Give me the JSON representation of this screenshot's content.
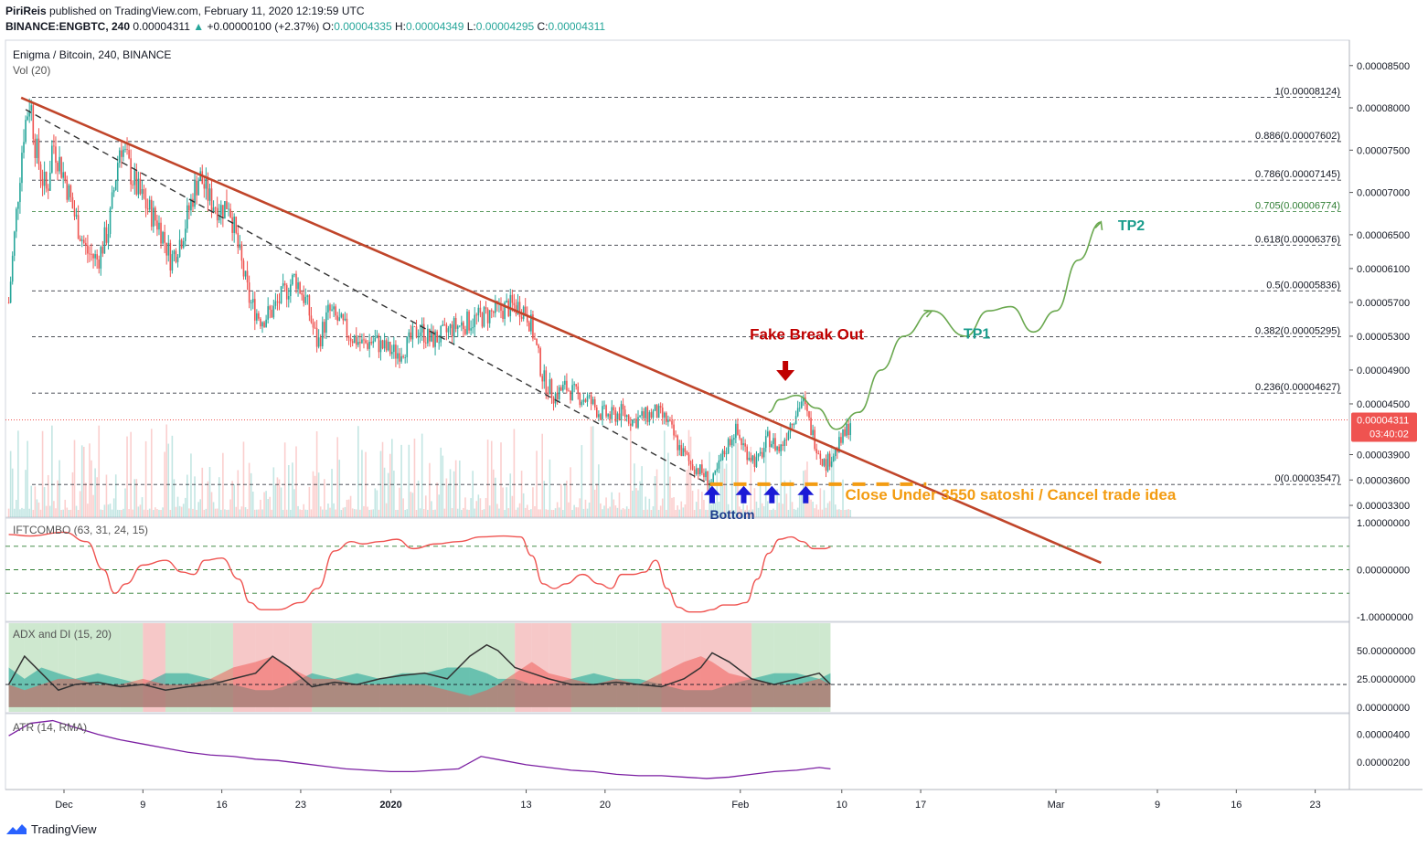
{
  "header": {
    "publisher": "PiriReis",
    "published_line": "published on TradingView.com, February 11, 2020 12:19:59 UTC",
    "symbol_line": "BINANCE:ENGBTC, 240",
    "last": "0.00004311",
    "change": "+0.00000100 (+2.37%)",
    "o_label": "O:",
    "o": "0.00004335",
    "h_label": "H:",
    "h": "0.00004349",
    "l_label": "L:",
    "l": "0.00004295",
    "c_label": "C:",
    "c": "0.00004311"
  },
  "main": {
    "title": "Enigma / Bitcoin, 240, BINANCE",
    "vol_label": "Vol (20)"
  },
  "colors": {
    "bull": "#26a69a",
    "bear": "#ef5350",
    "trendline": "#c0452a",
    "projection": "#6aa84f",
    "cancel_line": "#f39c12",
    "fake_breakout": "#c00000",
    "tp": "#1a9c8c",
    "arrows": "#1a1ad6"
  },
  "annotations": {
    "fake_breakout": "Fake Break Out",
    "tp1": "TP1",
    "tp2": "TP2",
    "cancel": "Close Under 3550 satoshi / Cancel trade idea",
    "bottom": "Bottom"
  },
  "price_labels": {
    "current": "0.00004311",
    "countdown": "03:40:02"
  },
  "indicators": {
    "ift": "IFTCOMBO (63, 31, 24, 15)",
    "adx": "ADX and DI (15, 20)",
    "atr": "ATR (14, RMA)"
  },
  "footer": {
    "brand": "TradingView"
  },
  "chart_data": {
    "type": "line",
    "title": "Enigma / Bitcoin, 240, BINANCE",
    "symbol": "BINANCE:ENGBTC",
    "timeframe": "240",
    "y_ticks": [
      "0.00008500",
      "0.00008000",
      "0.00007500",
      "0.00007000",
      "0.00006500",
      "0.00006100",
      "0.00005700",
      "0.00005300",
      "0.00004900",
      "0.00004500",
      "0.00003900",
      "0.00003600",
      "0.00003300"
    ],
    "x_ticks": [
      "Dec",
      "9",
      "16",
      "23",
      "2020",
      "13",
      "20",
      "Feb",
      "10",
      "17",
      "Mar",
      "9",
      "16",
      "23"
    ],
    "x_tick_positions": [
      0,
      7,
      14,
      21,
      29,
      41,
      48,
      60,
      69,
      76,
      88,
      97,
      104,
      111
    ],
    "ylim": [
      3.16e-05,
      8.8e-05
    ],
    "price_series": {
      "name": "ENGBTC",
      "x_day": [
        -4.9,
        -4.2,
        -3.6,
        -3.0,
        -2.6,
        -2.0,
        -1.5,
        -1.0,
        0.0,
        1.0,
        2.0,
        3.0,
        4.0,
        5.0,
        6.0,
        6.6,
        7.5,
        8.5,
        9.5,
        10.5,
        11.5,
        12.0,
        13.0,
        14.0,
        14.6,
        15.5,
        16.5,
        17.5,
        18.5,
        19.5,
        20.5,
        21.5,
        22.5,
        23.5,
        24.5,
        25.5,
        26.5,
        27.5,
        28.5,
        29.5,
        30.5,
        31.5,
        32.5,
        33.5,
        34.5,
        35.5,
        36.5,
        37.5,
        38.5,
        39.5,
        40.5,
        41.0,
        41.5,
        42.5,
        43.5,
        44.5,
        45.5,
        46.5,
        47.5,
        48.5,
        49.5,
        50.5,
        51.5,
        52.5,
        53.5,
        54.5,
        55.5,
        56.5,
        57.5,
        58.5,
        59.5,
        60.5,
        61.5,
        62.5,
        63.5,
        64.5,
        65.5,
        66.5,
        67.5,
        68.5,
        69.5,
        69.8
      ],
      "close": [
        5.7e-05,
        6.8e-05,
        7.7e-05,
        8.12e-05,
        7.6e-05,
        7.2e-05,
        7e-05,
        7.6e-05,
        7.2e-05,
        6.7e-05,
        6.3e-05,
        6.2e-05,
        6.6e-05,
        7.6e-05,
        7.2e-05,
        7e-05,
        6.8e-05,
        6.6e-05,
        6.2e-05,
        6.5e-05,
        7e-05,
        7.2e-05,
        6.9e-05,
        6.8e-05,
        6.9e-05,
        6.3e-05,
        5.7e-05,
        5.5e-05,
        5.6e-05,
        5.8e-05,
        6e-05,
        5.7e-05,
        5.2e-05,
        5.6e-05,
        5.45e-05,
        5.3e-05,
        5.2e-05,
        5.25e-05,
        5.15e-05,
        5.1e-05,
        5.2e-05,
        5.4e-05,
        5.25e-05,
        5.3e-05,
        5.4e-05,
        5.45e-05,
        5.5e-05,
        5.55e-05,
        5.6e-05,
        5.65e-05,
        5.65e-05,
        5.6e-05,
        5.4e-05,
        4.8e-05,
        4.6e-05,
        4.7e-05,
        4.6e-05,
        4.55e-05,
        4.4e-05,
        4.35e-05,
        4.4e-05,
        4.3e-05,
        4.35e-05,
        4.4e-05,
        4.3e-05,
        4e-05,
        3.8e-05,
        3.7e-05,
        3.55e-05,
        3.9e-05,
        4.2e-05,
        3.95e-05,
        3.8e-05,
        4.1e-05,
        3.95e-05,
        4.3e-05,
        4.55e-05,
        4.1e-05,
        3.78e-05,
        3.95e-05,
        4.2e-05,
        4.31e-05
      ]
    },
    "volume": {
      "name": "Vol (20)"
    },
    "fibonacci": [
      {
        "label": "1(0.00008124)",
        "value": 8.124e-05,
        "color": "#131722"
      },
      {
        "label": "0.886(0.00007602)",
        "value": 7.602e-05,
        "color": "#131722"
      },
      {
        "label": "0.786(0.00007145)",
        "value": 7.145e-05,
        "color": "#131722"
      },
      {
        "label": "0.705(0.00006774)",
        "value": 6.774e-05,
        "color": "#2e7d32"
      },
      {
        "label": "0.618(0.00006376)",
        "value": 6.376e-05,
        "color": "#131722"
      },
      {
        "label": "0.5(0.00005836)",
        "value": 5.836e-05,
        "color": "#131722"
      },
      {
        "label": "0.382(0.00005295)",
        "value": 5.295e-05,
        "color": "#131722"
      },
      {
        "label": "0.236(0.00004627)",
        "value": 4.627e-05,
        "color": "#131722"
      },
      {
        "label": "0(0.00003547)",
        "value": 3.547e-05,
        "color": "#131722"
      }
    ],
    "trendline": {
      "x_day": [
        -3.8,
        92.0
      ],
      "y": [
        8.12e-05,
        2.62e-05
      ]
    },
    "dashed_trendline": {
      "x_day": [
        -3.4,
        57.5
      ],
      "y": [
        7.98e-05,
        3.53e-05
      ]
    },
    "cancel_level": 3.55e-05,
    "projection": {
      "x_day": [
        62.5,
        63.5,
        65.0,
        66.8,
        68.5,
        70.5,
        72.5,
        74.5,
        77.0,
        80.0
      ],
      "y": [
        4.4e-05,
        4.55e-05,
        4.6e-05,
        4.45e-05,
        4.2e-05,
        4.4e-05,
        4.9e-05,
        5.3e-05,
        5.6e-05,
        5.3e-05
      ]
    },
    "projection2": {
      "x_day": [
        80.0,
        82.0,
        84.0,
        86.0,
        88.0,
        90.0,
        92.0
      ],
      "y": [
        5.3e-05,
        5.6e-05,
        5.65e-05,
        5.35e-05,
        5.6e-05,
        6.2e-05,
        6.65e-05
      ]
    },
    "bottom_arrows_x_day": [
      57.5,
      60.3,
      62.8,
      65.8
    ],
    "ift": {
      "name": "IFTCOMBO",
      "ylim": [
        -1.1,
        1.1
      ],
      "y_ticks": [
        "1.00000000",
        "0.00000000",
        "-1.00000000"
      ],
      "levels": [
        0.5,
        0,
        -0.5
      ],
      "x_day": [
        -4.9,
        -3.0,
        0.0,
        2.0,
        3.5,
        4.5,
        5.5,
        7.0,
        9.0,
        10.5,
        11.5,
        12.5,
        14.0,
        15.5,
        16.5,
        17.5,
        19.0,
        21.0,
        22.5,
        24.0,
        25.5,
        26.5,
        28.0,
        29.5,
        31.0,
        33.0,
        35.0,
        37.0,
        39.0,
        40.5,
        41.5,
        42.5,
        43.5,
        44.5,
        46.0,
        47.5,
        48.5,
        49.5,
        50.5,
        51.5,
        52.5,
        53.5,
        54.5,
        55.5,
        56.5,
        57.5,
        58.5,
        59.5,
        60.5,
        61.5,
        62.5,
        63.5,
        64.5,
        65.5,
        66.5,
        67.5,
        68.0
      ],
      "values": [
        0.75,
        0.72,
        0.8,
        0.6,
        0.0,
        -0.5,
        -0.3,
        0.1,
        0.2,
        -0.05,
        -0.1,
        0.2,
        0.25,
        -0.2,
        -0.7,
        -0.85,
        -0.85,
        -0.7,
        -0.4,
        0.4,
        0.6,
        0.55,
        0.6,
        0.65,
        0.45,
        0.55,
        0.6,
        0.7,
        0.72,
        0.7,
        0.3,
        -0.3,
        -0.4,
        -0.3,
        -0.1,
        -0.3,
        -0.4,
        -0.1,
        -0.1,
        -0.05,
        0.2,
        -0.4,
        -0.8,
        -0.9,
        -0.9,
        -0.85,
        -0.75,
        -0.75,
        -0.7,
        -0.2,
        0.35,
        0.65,
        0.7,
        0.6,
        0.45,
        0.45,
        0.48
      ]
    },
    "adx": {
      "name": "ADX and DI",
      "ylim": [
        -5,
        75
      ],
      "y_ticks": [
        "50.00000000",
        "25.00000000",
        "0.00000000"
      ],
      "level": 20,
      "x_day": [
        -4.9,
        -3.5,
        -2.0,
        -0.5,
        1.0,
        3.0,
        5.0,
        7.0,
        9.0,
        11.0,
        13.0,
        15.0,
        17.0,
        18.5,
        20.0,
        22.0,
        24.0,
        26.0,
        28.0,
        30.0,
        32.0,
        34.0,
        36.0,
        37.5,
        38.5,
        40.0,
        41.5,
        43.0,
        45.0,
        47.0,
        49.0,
        51.0,
        53.0,
        55.0,
        56.5,
        57.5,
        59.0,
        61.0,
        63.0,
        65.0,
        67.0,
        68.0
      ],
      "adx_values": [
        20,
        45,
        30,
        15,
        20,
        22,
        18,
        20,
        15,
        18,
        20,
        25,
        30,
        45,
        35,
        18,
        22,
        20,
        25,
        28,
        30,
        25,
        45,
        55,
        50,
        35,
        30,
        25,
        20,
        20,
        22,
        20,
        18,
        25,
        35,
        48,
        40,
        25,
        20,
        25,
        30,
        20
      ],
      "di_plus": [
        35,
        25,
        35,
        30,
        25,
        30,
        25,
        20,
        30,
        30,
        25,
        20,
        15,
        15,
        20,
        30,
        25,
        30,
        25,
        30,
        30,
        35,
        35,
        30,
        25,
        25,
        20,
        20,
        25,
        30,
        25,
        25,
        20,
        15,
        15,
        15,
        20,
        25,
        30,
        30,
        25,
        30
      ],
      "di_minus": [
        20,
        15,
        20,
        25,
        25,
        20,
        20,
        25,
        20,
        20,
        25,
        35,
        40,
        45,
        35,
        25,
        25,
        20,
        20,
        20,
        20,
        15,
        10,
        15,
        20,
        30,
        40,
        30,
        25,
        20,
        25,
        20,
        30,
        40,
        45,
        40,
        30,
        25,
        20,
        20,
        25,
        20
      ]
    },
    "atr": {
      "name": "ATR (14, RMA)",
      "ylim": [
        0.0,
        5.5e-06
      ],
      "y_ticks": [
        "0.00000400",
        "0.00000200"
      ],
      "x_day": [
        -4.9,
        -3.0,
        -1.0,
        1.0,
        3.0,
        5.0,
        7.0,
        9.0,
        11.0,
        13.0,
        15.0,
        17.0,
        19.0,
        21.0,
        23.0,
        25.0,
        27.0,
        29.0,
        31.0,
        33.0,
        35.0,
        37.0,
        39.0,
        41.0,
        43.0,
        45.0,
        47.0,
        49.0,
        51.0,
        53.0,
        55.0,
        57.0,
        59.0,
        61.0,
        63.0,
        65.0,
        67.0,
        68.0
      ],
      "values": [
        3.9e-06,
        4.8e-06,
        5e-06,
        4.5e-06,
        4e-06,
        3.6e-06,
        3.3e-06,
        3e-06,
        2.7e-06,
        2.5e-06,
        2.4e-06,
        2.2e-06,
        2.1e-06,
        1.9e-06,
        1.7e-06,
        1.5e-06,
        1.4e-06,
        1.3e-06,
        1.3e-06,
        1.4e-06,
        1.5e-06,
        2.4e-06,
        2.1e-06,
        1.8e-06,
        1.6e-06,
        1.4e-06,
        1.3e-06,
        1.1e-06,
        1e-06,
        1e-06,
        9e-07,
        8e-07,
        9e-07,
        1.1e-06,
        1.3e-06,
        1.4e-06,
        1.6e-06,
        1.5e-06
      ]
    }
  }
}
